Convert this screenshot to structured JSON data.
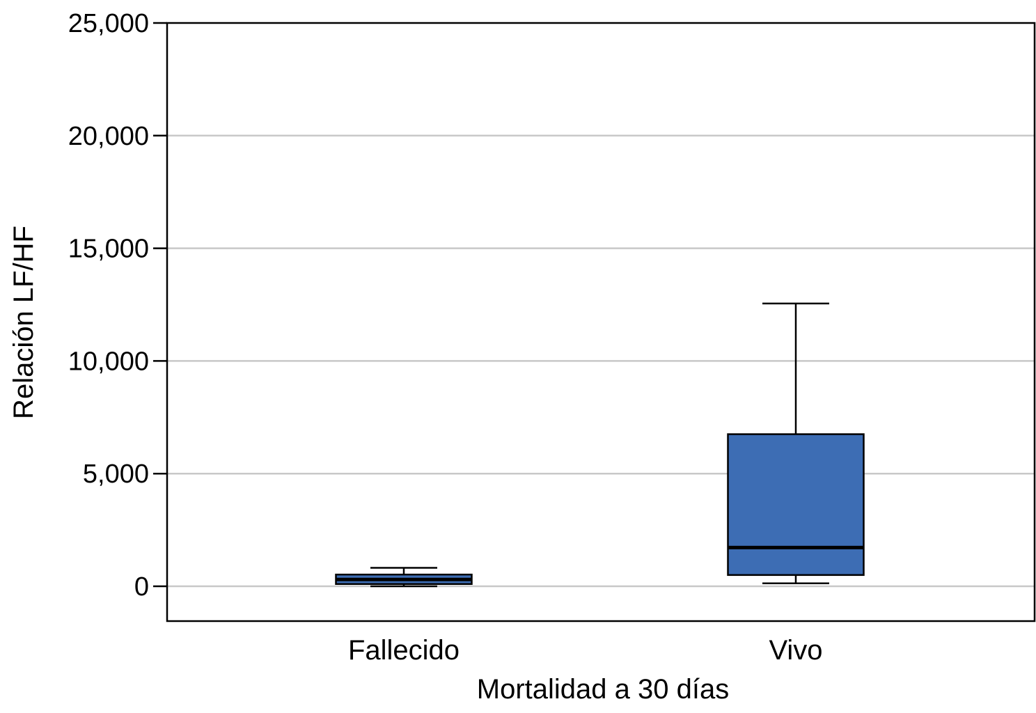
{
  "chart_data": {
    "type": "box",
    "title": "",
    "xlabel": "Mortalidad a 30 días",
    "ylabel": "Relación LF/HF",
    "ylim": [
      -1550,
      25000
    ],
    "yticks": [
      0,
      5000,
      10000,
      15000,
      20000,
      25000
    ],
    "ytick_labels": [
      "0",
      "5,000",
      "10,000",
      "15,000",
      "20,000",
      "25,000"
    ],
    "grid": "horizontal",
    "box_color": "#3d6db4",
    "categories": [
      "Fallecido",
      "Vivo"
    ],
    "boxes": [
      {
        "category": "Fallecido",
        "whisker_low": 0,
        "q1": 100,
        "median": 300,
        "q3": 520,
        "whisker_high": 820
      },
      {
        "category": "Vivo",
        "whisker_low": 130,
        "q1": 500,
        "median": 1720,
        "q3": 6750,
        "whisker_high": 12550
      }
    ]
  }
}
